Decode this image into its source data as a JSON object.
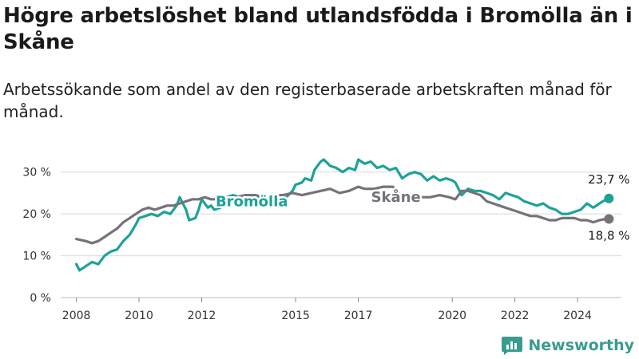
{
  "title": "Högre arbetslöshet bland utlandsfödda i Bromölla än i Skåne",
  "subtitle": "Arbetssökande som andel av den registerbaserade arbetskraften månad för månad.",
  "brand": "Newsworthy",
  "colors": {
    "bromolla": "#1ca396",
    "skane": "#77717a",
    "grid": "#d9d9d9",
    "text": "#333333"
  },
  "chart_data": {
    "type": "line",
    "xlabel": "",
    "ylabel": "",
    "ylim": [
      0,
      33
    ],
    "yticks": [
      0,
      10,
      20,
      30
    ],
    "ytick_labels": [
      "0 %",
      "10 %",
      "20 %",
      "30 %"
    ],
    "xticks": [
      2008,
      2010,
      2012,
      2015,
      2017,
      2020,
      2022,
      2024
    ],
    "xtick_labels": [
      "2008",
      "2010",
      "2012",
      "2015",
      "2017",
      "2020",
      "2022",
      "2024"
    ],
    "xlim": [
      2007.5,
      2025.4
    ],
    "grid": true,
    "legend": "inline",
    "series": [
      {
        "name": "Bromölla",
        "label_position": [
          2013.6,
          23.0
        ],
        "end_label": "23,7 %",
        "points": [
          [
            2008.0,
            8.0
          ],
          [
            2008.1,
            6.5
          ],
          [
            2008.3,
            7.5
          ],
          [
            2008.5,
            8.5
          ],
          [
            2008.7,
            8.0
          ],
          [
            2008.9,
            10.0
          ],
          [
            2009.1,
            11.0
          ],
          [
            2009.3,
            11.5
          ],
          [
            2009.5,
            13.5
          ],
          [
            2009.7,
            15.0
          ],
          [
            2009.9,
            17.5
          ],
          [
            2010.0,
            19.0
          ],
          [
            2010.2,
            19.5
          ],
          [
            2010.4,
            20.0
          ],
          [
            2010.6,
            19.5
          ],
          [
            2010.8,
            20.5
          ],
          [
            2011.0,
            20.0
          ],
          [
            2011.2,
            22.0
          ],
          [
            2011.3,
            24.0
          ],
          [
            2011.5,
            21.0
          ],
          [
            2011.6,
            18.5
          ],
          [
            2011.8,
            19.0
          ],
          [
            2011.9,
            21.0
          ],
          [
            2012.0,
            23.5
          ],
          [
            2012.2,
            21.5
          ],
          [
            2012.3,
            22.0
          ],
          [
            2012.4,
            21.0
          ],
          [
            2012.6,
            21.5
          ],
          [
            2012.8,
            24.0
          ],
          [
            2013.0,
            24.5
          ],
          [
            2013.2,
            24.0
          ],
          [
            2013.5,
            23.5
          ],
          [
            2013.8,
            24.0
          ],
          [
            2014.1,
            24.5
          ],
          [
            2014.4,
            23.5
          ],
          [
            2014.7,
            24.0
          ],
          [
            2014.9,
            25.5
          ],
          [
            2015.0,
            27.0
          ],
          [
            2015.2,
            27.5
          ],
          [
            2015.3,
            28.5
          ],
          [
            2015.5,
            28.0
          ],
          [
            2015.6,
            30.5
          ],
          [
            2015.8,
            32.5
          ],
          [
            2015.9,
            33.0
          ],
          [
            2016.1,
            31.5
          ],
          [
            2016.3,
            31.0
          ],
          [
            2016.5,
            30.0
          ],
          [
            2016.7,
            31.0
          ],
          [
            2016.9,
            30.5
          ],
          [
            2017.0,
            33.0
          ],
          [
            2017.2,
            32.0
          ],
          [
            2017.4,
            32.5
          ],
          [
            2017.6,
            31.0
          ],
          [
            2017.8,
            31.5
          ],
          [
            2018.0,
            30.5
          ],
          [
            2018.2,
            31.0
          ],
          [
            2018.4,
            28.5
          ],
          [
            2018.6,
            29.5
          ],
          [
            2018.8,
            30.0
          ],
          [
            2019.0,
            29.5
          ],
          [
            2019.2,
            28.0
          ],
          [
            2019.4,
            29.0
          ],
          [
            2019.6,
            28.0
          ],
          [
            2019.8,
            28.5
          ],
          [
            2020.0,
            28.0
          ],
          [
            2020.1,
            27.5
          ],
          [
            2020.3,
            24.5
          ],
          [
            2020.5,
            26.0
          ],
          [
            2020.7,
            25.5
          ],
          [
            2020.9,
            25.5
          ],
          [
            2021.1,
            25.0
          ],
          [
            2021.3,
            24.5
          ],
          [
            2021.5,
            23.5
          ],
          [
            2021.7,
            25.0
          ],
          [
            2021.9,
            24.5
          ],
          [
            2022.1,
            24.0
          ],
          [
            2022.3,
            23.0
          ],
          [
            2022.5,
            22.5
          ],
          [
            2022.7,
            22.0
          ],
          [
            2022.9,
            22.5
          ],
          [
            2023.1,
            21.5
          ],
          [
            2023.3,
            21.0
          ],
          [
            2023.5,
            20.0
          ],
          [
            2023.7,
            20.0
          ],
          [
            2023.9,
            20.5
          ],
          [
            2024.1,
            21.0
          ],
          [
            2024.3,
            22.5
          ],
          [
            2024.5,
            21.5
          ],
          [
            2024.6,
            22.0
          ],
          [
            2024.8,
            23.0
          ],
          [
            2025.0,
            23.7
          ]
        ]
      },
      {
        "name": "Skåne",
        "label_position": [
          2018.2,
          24.0
        ],
        "end_label": "18,8 %",
        "points": [
          [
            2008.0,
            14.0
          ],
          [
            2008.3,
            13.5
          ],
          [
            2008.5,
            13.0
          ],
          [
            2008.7,
            13.5
          ],
          [
            2008.9,
            14.5
          ],
          [
            2009.1,
            15.5
          ],
          [
            2009.3,
            16.5
          ],
          [
            2009.5,
            18.0
          ],
          [
            2009.7,
            19.0
          ],
          [
            2009.9,
            20.0
          ],
          [
            2010.1,
            21.0
          ],
          [
            2010.3,
            21.5
          ],
          [
            2010.5,
            21.0
          ],
          [
            2010.7,
            21.5
          ],
          [
            2010.9,
            22.0
          ],
          [
            2011.1,
            22.0
          ],
          [
            2011.3,
            22.5
          ],
          [
            2011.5,
            23.0
          ],
          [
            2011.7,
            23.5
          ],
          [
            2011.9,
            23.5
          ],
          [
            2012.1,
            24.0
          ],
          [
            2012.3,
            23.5
          ],
          [
            2012.5,
            23.5
          ],
          [
            2012.8,
            24.0
          ],
          [
            2013.1,
            24.0
          ],
          [
            2013.4,
            24.5
          ],
          [
            2013.7,
            24.5
          ],
          [
            2014.0,
            24.0
          ],
          [
            2014.3,
            24.5
          ],
          [
            2014.6,
            24.5
          ],
          [
            2014.9,
            25.0
          ],
          [
            2015.2,
            24.5
          ],
          [
            2015.5,
            25.0
          ],
          [
            2015.8,
            25.5
          ],
          [
            2016.1,
            26.0
          ],
          [
            2016.4,
            25.0
          ],
          [
            2016.7,
            25.5
          ],
          [
            2017.0,
            26.5
          ],
          [
            2017.2,
            26.0
          ],
          [
            2017.5,
            26.0
          ],
          [
            2017.8,
            26.5
          ],
          [
            2018.1,
            26.5
          ],
          [
            2018.4,
            24.5
          ],
          [
            2018.7,
            24.5
          ],
          [
            2019.0,
            24.0
          ],
          [
            2019.3,
            24.0
          ],
          [
            2019.6,
            24.5
          ],
          [
            2019.9,
            24.0
          ],
          [
            2020.1,
            23.5
          ],
          [
            2020.3,
            25.5
          ],
          [
            2020.5,
            25.5
          ],
          [
            2020.7,
            25.0
          ],
          [
            2020.9,
            24.5
          ],
          [
            2021.1,
            23.0
          ],
          [
            2021.3,
            22.5
          ],
          [
            2021.5,
            22.0
          ],
          [
            2021.7,
            21.5
          ],
          [
            2021.9,
            21.0
          ],
          [
            2022.1,
            20.5
          ],
          [
            2022.3,
            20.0
          ],
          [
            2022.5,
            19.5
          ],
          [
            2022.7,
            19.5
          ],
          [
            2022.9,
            19.0
          ],
          [
            2023.1,
            18.5
          ],
          [
            2023.3,
            18.5
          ],
          [
            2023.5,
            19.0
          ],
          [
            2023.7,
            19.0
          ],
          [
            2023.9,
            19.0
          ],
          [
            2024.1,
            18.5
          ],
          [
            2024.3,
            18.5
          ],
          [
            2024.5,
            18.0
          ],
          [
            2024.7,
            18.5
          ],
          [
            2024.9,
            18.8
          ],
          [
            2025.0,
            18.8
          ]
        ]
      }
    ]
  }
}
